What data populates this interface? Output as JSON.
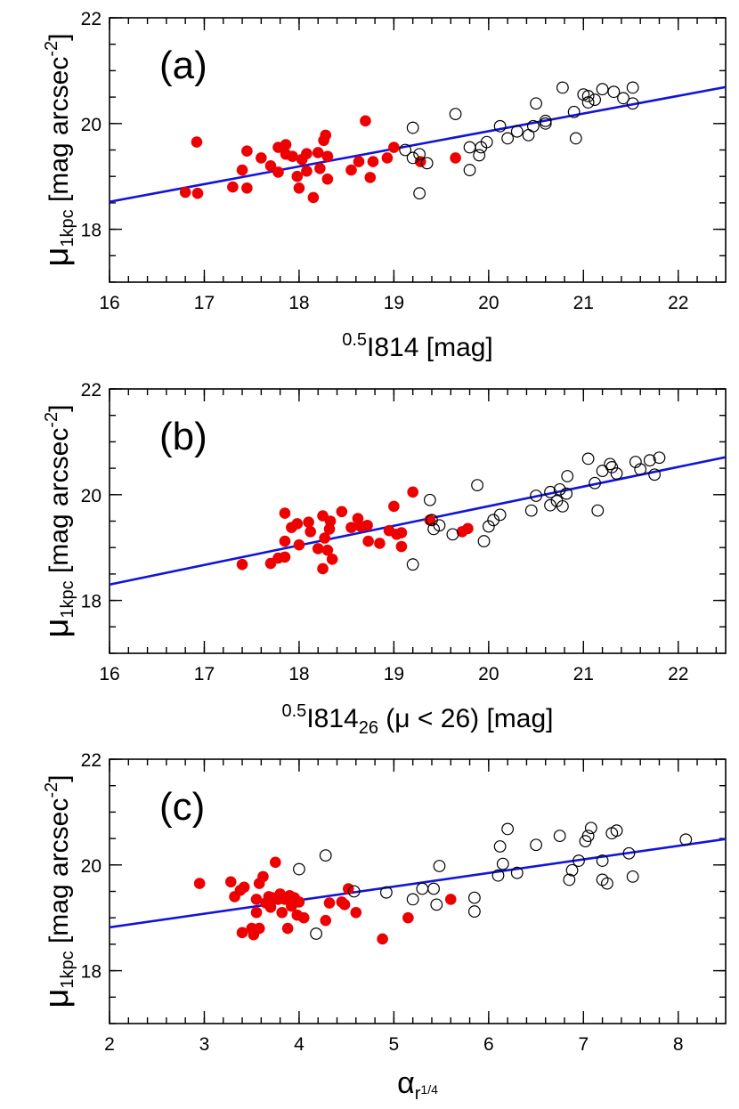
{
  "colors": {
    "red": "#ee0000",
    "blue": "#1414d8",
    "black": "#000000"
  },
  "chart_data": [
    {
      "type": "scatter",
      "panel_label": "(a)",
      "xlabel": {
        "sup": "0.5",
        "main": "I814 [mag]",
        "sub": "",
        "tail": ""
      },
      "ylabel": {
        "mu": "μ",
        "sub": "1kpc",
        "main": " [mag arcsec",
        "sup": "-2",
        "close": "]"
      },
      "xlim": [
        16,
        22.5
      ],
      "ylim": [
        17,
        22
      ],
      "xticks": [
        16,
        17,
        18,
        19,
        20,
        21,
        22
      ],
      "xticklabels": [
        "16",
        "17",
        "18",
        "19",
        "20",
        "21",
        "22"
      ],
      "yticks": [
        18,
        20,
        22
      ],
      "yticklabels": [
        "18",
        "20",
        "22"
      ],
      "fit_line": {
        "x": [
          16,
          22.5
        ],
        "y": [
          18.52,
          20.69
        ]
      },
      "series": [
        {
          "marker": "filled",
          "color": "#ee0000",
          "points": [
            [
              16.8,
              18.7
            ],
            [
              16.93,
              18.68
            ],
            [
              16.92,
              19.65
            ],
            [
              17.3,
              18.8
            ],
            [
              17.45,
              18.78
            ],
            [
              17.4,
              19.12
            ],
            [
              17.45,
              19.48
            ],
            [
              17.6,
              19.35
            ],
            [
              17.7,
              19.2
            ],
            [
              17.78,
              19.08
            ],
            [
              17.78,
              19.55
            ],
            [
              17.86,
              19.6
            ],
            [
              17.86,
              19.42
            ],
            [
              17.93,
              19.38
            ],
            [
              17.98,
              19.0
            ],
            [
              18.0,
              18.78
            ],
            [
              18.03,
              19.32
            ],
            [
              18.08,
              19.43
            ],
            [
              18.08,
              19.1
            ],
            [
              18.15,
              18.6
            ],
            [
              18.2,
              19.45
            ],
            [
              18.22,
              19.15
            ],
            [
              18.26,
              19.68
            ],
            [
              18.28,
              19.78
            ],
            [
              18.3,
              19.38
            ],
            [
              18.3,
              18.95
            ],
            [
              18.55,
              19.12
            ],
            [
              18.63,
              19.28
            ],
            [
              18.7,
              20.05
            ],
            [
              18.75,
              18.98
            ],
            [
              18.78,
              19.28
            ],
            [
              18.93,
              19.35
            ],
            [
              19.0,
              19.55
            ],
            [
              19.28,
              19.28
            ],
            [
              19.65,
              19.35
            ]
          ]
        },
        {
          "marker": "open",
          "color": "#000000",
          "points": [
            [
              19.2,
              19.92
            ],
            [
              19.12,
              19.5
            ],
            [
              19.2,
              19.35
            ],
            [
              19.27,
              19.42
            ],
            [
              19.27,
              18.68
            ],
            [
              19.35,
              19.25
            ],
            [
              19.65,
              20.18
            ],
            [
              19.8,
              19.12
            ],
            [
              19.8,
              19.55
            ],
            [
              19.9,
              19.4
            ],
            [
              19.92,
              19.55
            ],
            [
              19.98,
              19.65
            ],
            [
              20.12,
              19.95
            ],
            [
              20.2,
              19.72
            ],
            [
              20.3,
              19.85
            ],
            [
              20.42,
              19.78
            ],
            [
              20.47,
              19.95
            ],
            [
              20.5,
              20.38
            ],
            [
              20.6,
              20.0
            ],
            [
              20.6,
              20.05
            ],
            [
              20.78,
              20.68
            ],
            [
              20.9,
              20.22
            ],
            [
              20.92,
              19.72
            ],
            [
              21.0,
              20.55
            ],
            [
              21.05,
              20.52
            ],
            [
              21.05,
              20.4
            ],
            [
              21.12,
              20.45
            ],
            [
              21.2,
              20.65
            ],
            [
              21.32,
              20.6
            ],
            [
              21.42,
              20.48
            ],
            [
              21.52,
              20.68
            ],
            [
              21.52,
              20.38
            ]
          ]
        }
      ]
    },
    {
      "type": "scatter",
      "panel_label": "(b)",
      "xlabel": {
        "sup": "0.5",
        "main": "I814",
        "sub": "26",
        "tail": " (μ < 26) [mag]"
      },
      "ylabel": {
        "mu": "μ",
        "sub": "1kpc",
        "main": " [mag arcsec",
        "sup": "-2",
        "close": "]"
      },
      "xlim": [
        16,
        22.5
      ],
      "ylim": [
        17,
        22
      ],
      "xticks": [
        16,
        17,
        18,
        19,
        20,
        21,
        22
      ],
      "xticklabels": [
        "16",
        "17",
        "18",
        "19",
        "20",
        "21",
        "22"
      ],
      "yticks": [
        18,
        20,
        22
      ],
      "yticklabels": [
        "18",
        "20",
        "22"
      ],
      "fit_line": {
        "x": [
          16,
          22.5
        ],
        "y": [
          18.3,
          20.71
        ]
      },
      "series": [
        {
          "marker": "filled",
          "color": "#ee0000",
          "points": [
            [
              17.4,
              18.68
            ],
            [
              17.7,
              18.7
            ],
            [
              17.78,
              18.8
            ],
            [
              17.85,
              18.82
            ],
            [
              17.85,
              19.12
            ],
            [
              17.85,
              19.65
            ],
            [
              17.92,
              19.38
            ],
            [
              17.98,
              19.45
            ],
            [
              18.0,
              19.05
            ],
            [
              18.1,
              19.48
            ],
            [
              18.12,
              19.3
            ],
            [
              18.2,
              18.98
            ],
            [
              18.25,
              19.6
            ],
            [
              18.25,
              18.6
            ],
            [
              18.27,
              19.18
            ],
            [
              18.3,
              18.95
            ],
            [
              18.32,
              19.35
            ],
            [
              18.33,
              19.5
            ],
            [
              18.35,
              18.78
            ],
            [
              18.45,
              19.68
            ],
            [
              18.55,
              19.38
            ],
            [
              18.62,
              19.55
            ],
            [
              18.65,
              19.4
            ],
            [
              18.72,
              19.42
            ],
            [
              18.73,
              19.12
            ],
            [
              18.85,
              19.08
            ],
            [
              18.95,
              19.32
            ],
            [
              19.0,
              19.78
            ],
            [
              19.03,
              19.25
            ],
            [
              19.08,
              19.28
            ],
            [
              19.08,
              19.02
            ],
            [
              19.2,
              20.05
            ],
            [
              19.38,
              19.52
            ],
            [
              19.72,
              19.3
            ],
            [
              19.78,
              19.36
            ]
          ]
        },
        {
          "marker": "open",
          "color": "#000000",
          "points": [
            [
              19.2,
              18.68
            ],
            [
              19.38,
              19.9
            ],
            [
              19.4,
              19.52
            ],
            [
              19.42,
              19.35
            ],
            [
              19.48,
              19.42
            ],
            [
              19.62,
              19.25
            ],
            [
              19.88,
              20.18
            ],
            [
              19.95,
              19.12
            ],
            [
              20.0,
              19.4
            ],
            [
              20.05,
              19.52
            ],
            [
              20.12,
              19.62
            ],
            [
              20.45,
              19.7
            ],
            [
              20.5,
              19.98
            ],
            [
              20.65,
              19.8
            ],
            [
              20.65,
              20.05
            ],
            [
              20.72,
              19.88
            ],
            [
              20.75,
              20.1
            ],
            [
              20.78,
              19.78
            ],
            [
              20.82,
              20.02
            ],
            [
              20.83,
              20.35
            ],
            [
              21.05,
              20.68
            ],
            [
              21.12,
              20.22
            ],
            [
              21.15,
              19.7
            ],
            [
              21.2,
              20.45
            ],
            [
              21.3,
              20.52
            ],
            [
              21.35,
              20.4
            ],
            [
              21.55,
              20.62
            ],
            [
              21.6,
              20.48
            ],
            [
              21.7,
              20.65
            ],
            [
              21.75,
              20.38
            ],
            [
              21.8,
              20.7
            ],
            [
              21.28,
              20.58
            ]
          ]
        }
      ]
    },
    {
      "type": "scatter",
      "panel_label": "(c)",
      "xlabel": {
        "alpha": "α",
        "sub": "r",
        "subsup": "1/4"
      },
      "ylabel": {
        "mu": "μ",
        "sub": "1kpc",
        "main": " [mag arcsec",
        "sup": "-2",
        "close": "]"
      },
      "xlim": [
        2,
        8.5
      ],
      "ylim": [
        17,
        22
      ],
      "xticks": [
        2,
        3,
        4,
        5,
        6,
        7,
        8
      ],
      "xticklabels": [
        "2",
        "3",
        "4",
        "5",
        "6",
        "7",
        "8"
      ],
      "yticks": [
        18,
        20,
        22
      ],
      "yticklabels": [
        "18",
        "20",
        "22"
      ],
      "fit_line": {
        "x": [
          2,
          8.5
        ],
        "y": [
          18.82,
          20.49
        ]
      },
      "series": [
        {
          "marker": "filled",
          "color": "#ee0000",
          "points": [
            [
              2.95,
              19.65
            ],
            [
              3.28,
              19.68
            ],
            [
              3.32,
              19.4
            ],
            [
              3.38,
              19.52
            ],
            [
              3.4,
              18.72
            ],
            [
              3.42,
              19.58
            ],
            [
              3.5,
              18.8
            ],
            [
              3.52,
              18.68
            ],
            [
              3.55,
              19.1
            ],
            [
              3.55,
              19.35
            ],
            [
              3.58,
              19.65
            ],
            [
              3.58,
              18.8
            ],
            [
              3.62,
              19.78
            ],
            [
              3.65,
              19.28
            ],
            [
              3.68,
              19.4
            ],
            [
              3.7,
              19.2
            ],
            [
              3.72,
              19.38
            ],
            [
              3.75,
              20.05
            ],
            [
              3.78,
              19.35
            ],
            [
              3.8,
              19.45
            ],
            [
              3.82,
              19.1
            ],
            [
              3.85,
              19.35
            ],
            [
              3.88,
              18.8
            ],
            [
              3.9,
              19.42
            ],
            [
              3.92,
              19.22
            ],
            [
              3.95,
              19.38
            ],
            [
              3.98,
              19.05
            ],
            [
              4.0,
              19.3
            ],
            [
              4.05,
              19.0
            ],
            [
              4.28,
              18.95
            ],
            [
              4.32,
              19.28
            ],
            [
              4.45,
              19.3
            ],
            [
              4.52,
              19.55
            ],
            [
              4.6,
              19.1
            ],
            [
              4.88,
              18.6
            ],
            [
              5.15,
              19.0
            ],
            [
              5.6,
              19.35
            ],
            [
              4.48,
              19.25
            ]
          ]
        },
        {
          "marker": "open",
          "color": "#000000",
          "points": [
            [
              4.0,
              19.92
            ],
            [
              4.18,
              18.7
            ],
            [
              4.28,
              20.18
            ],
            [
              4.58,
              19.5
            ],
            [
              4.92,
              19.48
            ],
            [
              5.2,
              19.35
            ],
            [
              5.3,
              19.55
            ],
            [
              5.42,
              19.55
            ],
            [
              5.45,
              19.25
            ],
            [
              5.48,
              19.98
            ],
            [
              5.85,
              19.12
            ],
            [
              5.85,
              19.38
            ],
            [
              6.1,
              19.8
            ],
            [
              6.12,
              20.35
            ],
            [
              6.15,
              20.02
            ],
            [
              6.2,
              20.68
            ],
            [
              6.3,
              19.85
            ],
            [
              6.5,
              20.38
            ],
            [
              6.75,
              20.55
            ],
            [
              6.85,
              19.72
            ],
            [
              6.88,
              19.9
            ],
            [
              6.95,
              20.08
            ],
            [
              7.02,
              20.45
            ],
            [
              7.05,
              20.55
            ],
            [
              7.08,
              20.7
            ],
            [
              7.2,
              20.08
            ],
            [
              7.2,
              19.72
            ],
            [
              7.25,
              19.65
            ],
            [
              7.3,
              20.6
            ],
            [
              7.35,
              20.65
            ],
            [
              7.48,
              20.22
            ],
            [
              7.52,
              19.78
            ],
            [
              8.08,
              20.48
            ]
          ]
        }
      ]
    }
  ]
}
